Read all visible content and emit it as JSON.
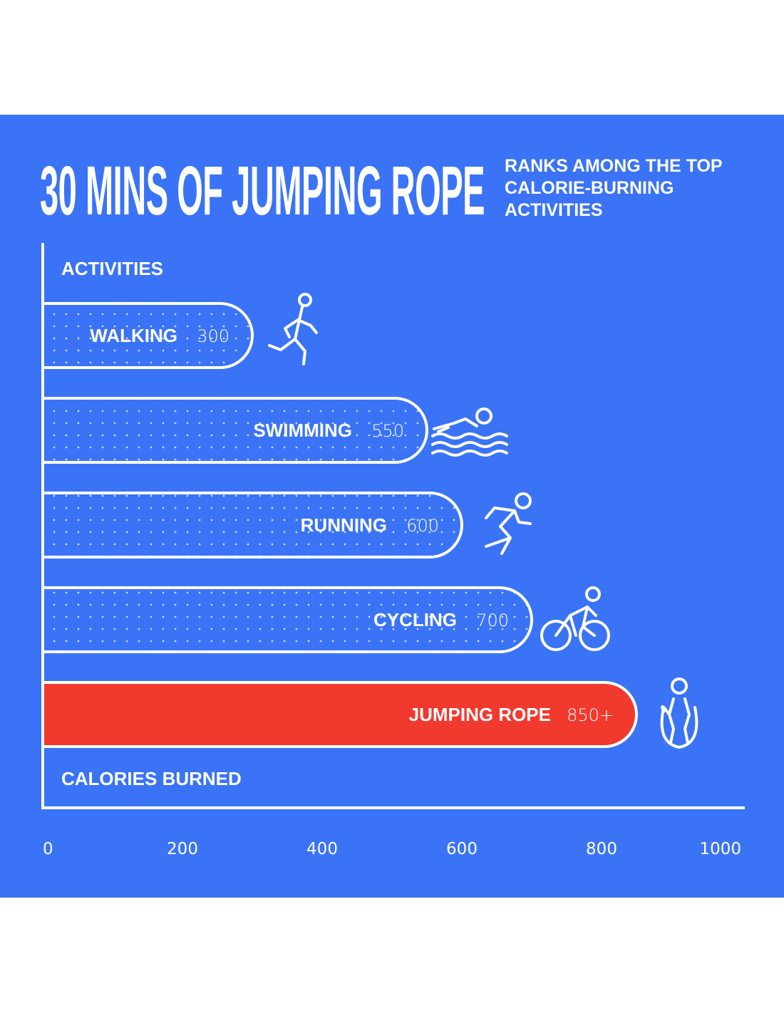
{
  "header": {
    "title": "30 MINS OF JUMPING ROPE",
    "subtitle": "RANKS AMONG THE TOP\nCALORIE-BURNING\nACTIVITIES"
  },
  "colors": {
    "background": "#3a73f5",
    "bar_outline": "#ffffff",
    "highlight": "#f2392e",
    "dots": "#c9d9ff"
  },
  "chart_data": {
    "type": "bar",
    "orientation": "horizontal",
    "ylabel": "ACTIVITIES",
    "xlabel": "CALORIES BURNED",
    "xlim": [
      0,
      1000
    ],
    "ticks": [
      0,
      200,
      400,
      600,
      800,
      1000
    ],
    "bars": [
      {
        "name": "WALKING",
        "label": "300",
        "value": 300,
        "icon": "walking-icon",
        "highlight": false
      },
      {
        "name": "SWIMMING",
        "label": "550",
        "value": 550,
        "icon": "swimming-icon",
        "highlight": false
      },
      {
        "name": "RUNNING",
        "label": "600",
        "value": 600,
        "icon": "running-icon",
        "highlight": false
      },
      {
        "name": "CYCLING",
        "label": "700",
        "value": 700,
        "icon": "cycling-icon",
        "highlight": false
      },
      {
        "name": "JUMPING ROPE",
        "label": "850+",
        "value": 850,
        "icon": "jumping-rope-icon",
        "highlight": true
      }
    ]
  }
}
